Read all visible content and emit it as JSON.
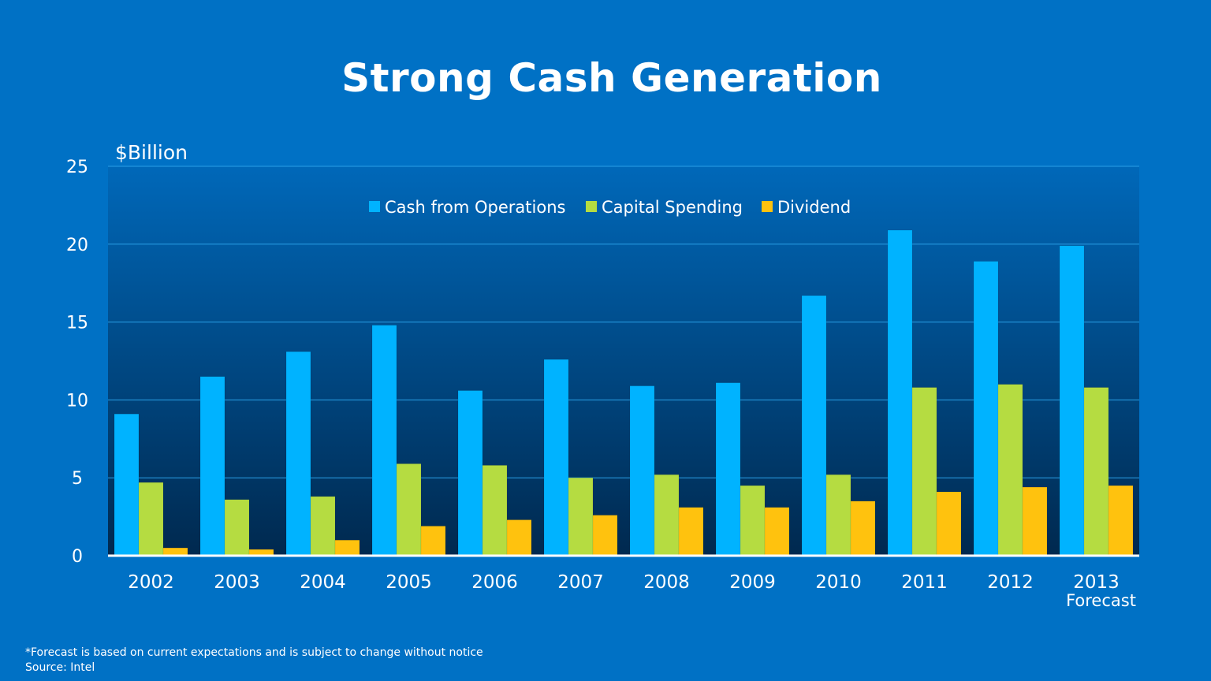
{
  "title": "Strong Cash Generation",
  "chart_data": {
    "type": "bar",
    "unit_label": "$Billion",
    "categories": [
      "2002",
      "2003",
      "2004",
      "2005",
      "2006",
      "2007",
      "2008",
      "2009",
      "2010",
      "2011",
      "2012",
      "2013"
    ],
    "category_sublabels": [
      "",
      "",
      "",
      "",
      "",
      "",
      "",
      "",
      "",
      "",
      "",
      "Forecast"
    ],
    "ylim": [
      0,
      25
    ],
    "yticks": [
      0,
      5,
      10,
      15,
      20,
      25
    ],
    "grid": true,
    "legend_position": "top-center",
    "series": [
      {
        "name": "Cash from Operations",
        "color": "#00b3ff",
        "values": [
          9.1,
          11.5,
          13.1,
          14.8,
          10.6,
          12.6,
          10.9,
          11.1,
          16.7,
          20.9,
          18.9,
          19.9
        ]
      },
      {
        "name": "Capital Spending",
        "color": "#b5dc41",
        "values": [
          4.7,
          3.6,
          3.8,
          5.9,
          5.8,
          5.0,
          5.2,
          4.5,
          5.2,
          10.8,
          11.0,
          10.8
        ]
      },
      {
        "name": "Dividend",
        "color": "#ffc20e",
        "values": [
          0.5,
          0.4,
          1.0,
          1.9,
          2.3,
          2.6,
          3.1,
          3.1,
          3.5,
          4.1,
          4.4,
          4.5
        ]
      }
    ]
  },
  "footnotes": [
    "*Forecast  is based on current expectations and is subject to change without notice",
    "Source: Intel"
  ]
}
